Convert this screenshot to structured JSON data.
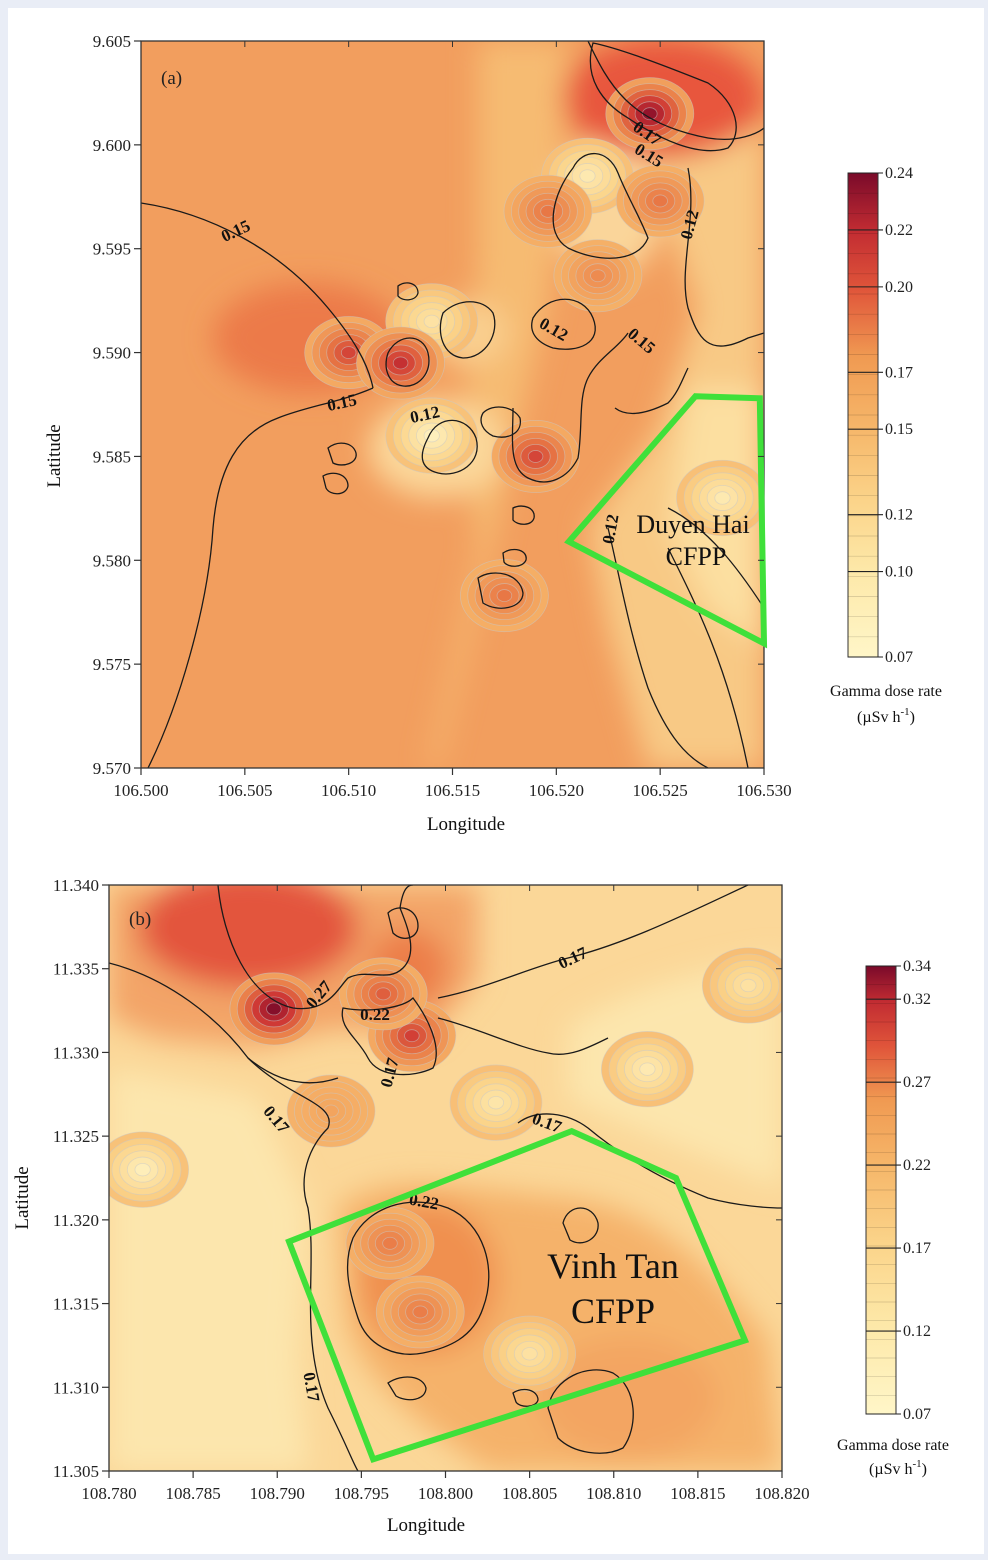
{
  "chart_data": [
    {
      "type": "heatmap",
      "panel_label": "(a)",
      "xlabel": "Longitude",
      "ylabel": "Latitude",
      "xlim": [
        106.5,
        106.53
      ],
      "ylim": [
        9.57,
        9.605
      ],
      "x_ticks": [
        "106.500",
        "106.505",
        "106.510",
        "106.515",
        "106.520",
        "106.525",
        "106.530"
      ],
      "y_ticks": [
        "9.570",
        "9.575",
        "9.580",
        "9.585",
        "9.590",
        "9.595",
        "9.600",
        "9.605"
      ],
      "contour_labels": [
        "0.15",
        "0.15",
        "0.12",
        "0.12",
        "0.17",
        "0.15",
        "0.12",
        "0.15",
        "0.12"
      ],
      "colorbar": {
        "range": [
          0.07,
          0.24
        ],
        "ticks": [
          "0.24",
          "0.22",
          "0.20",
          "0.17",
          "0.15",
          "0.12",
          "0.10",
          "0.07"
        ],
        "title_line1": "Gamma dose rate",
        "unit_base": "(µSv h",
        "unit_sup": "-1",
        "unit_end": ")"
      },
      "site_lines": [
        "Duyen Hai",
        "CFPP"
      ],
      "hotspots": [
        {
          "x": 106.5245,
          "y": 9.6015,
          "value": 0.23
        },
        {
          "x": 106.51,
          "y": 9.59,
          "value": 0.2
        },
        {
          "x": 106.5125,
          "y": 9.5895,
          "value": 0.21
        },
        {
          "x": 106.519,
          "y": 9.585,
          "value": 0.2
        },
        {
          "x": 106.5175,
          "y": 9.5783,
          "value": 0.18
        },
        {
          "x": 106.5196,
          "y": 9.5968,
          "value": 0.18
        },
        {
          "x": 106.525,
          "y": 9.5973,
          "value": 0.18
        },
        {
          "x": 106.522,
          "y": 9.5937,
          "value": 0.17
        }
      ],
      "coldspots": [
        {
          "x": 106.514,
          "y": 9.586,
          "value": 0.08
        },
        {
          "x": 106.5215,
          "y": 9.5985,
          "value": 0.09
        },
        {
          "x": 106.528,
          "y": 9.583,
          "value": 0.09
        },
        {
          "x": 106.514,
          "y": 9.5915,
          "value": 0.1
        }
      ],
      "polygon": [
        [
          106.5267,
          9.5879
        ],
        [
          106.5298,
          9.5878
        ],
        [
          106.53,
          9.576
        ],
        [
          106.5206,
          9.5809
        ]
      ]
    },
    {
      "type": "heatmap",
      "panel_label": "(b)",
      "xlabel": "Longitude",
      "ylabel": "Latitude",
      "xlim": [
        108.78,
        108.82
      ],
      "ylim": [
        11.305,
        11.34
      ],
      "x_ticks": [
        "108.780",
        "108.785",
        "108.790",
        "108.795",
        "108.800",
        "108.805",
        "108.810",
        "108.815",
        "108.820"
      ],
      "y_ticks": [
        "11.305",
        "11.310",
        "11.315",
        "11.320",
        "11.325",
        "11.330",
        "11.335",
        "11.340"
      ],
      "contour_labels": [
        "0.27",
        "0.22",
        "0.17",
        "0.17",
        "0.17",
        "0.17",
        "0.22",
        "0.17"
      ],
      "colorbar": {
        "range": [
          0.07,
          0.34
        ],
        "ticks": [
          "0.34",
          "0.32",
          "0.27",
          "0.22",
          "0.17",
          "0.12",
          "0.07"
        ],
        "title_line1": "Gamma dose rate",
        "unit_base": "(µSv h",
        "unit_sup": "-1",
        "unit_end": ")"
      },
      "site_lines": [
        "Vinh Tan",
        "CFPP"
      ],
      "hotspots": [
        {
          "x": 108.7898,
          "y": 11.3326,
          "value": 0.33
        },
        {
          "x": 108.798,
          "y": 11.331,
          "value": 0.28
        },
        {
          "x": 108.7963,
          "y": 11.3335,
          "value": 0.26
        },
        {
          "x": 108.7967,
          "y": 11.3186,
          "value": 0.24
        },
        {
          "x": 108.7985,
          "y": 11.3145,
          "value": 0.24
        },
        {
          "x": 108.7932,
          "y": 11.3265,
          "value": 0.21
        }
      ],
      "coldspots": [
        {
          "x": 108.782,
          "y": 11.323,
          "value": 0.09
        },
        {
          "x": 108.812,
          "y": 11.329,
          "value": 0.1
        },
        {
          "x": 108.803,
          "y": 11.327,
          "value": 0.11
        },
        {
          "x": 108.805,
          "y": 11.312,
          "value": 0.12
        },
        {
          "x": 108.818,
          "y": 11.334,
          "value": 0.12
        }
      ],
      "polygon": [
        [
          108.7907,
          11.3187
        ],
        [
          108.8075,
          11.3253
        ],
        [
          108.8137,
          11.3225
        ],
        [
          108.8178,
          11.3128
        ],
        [
          108.7957,
          11.3057
        ]
      ]
    }
  ]
}
